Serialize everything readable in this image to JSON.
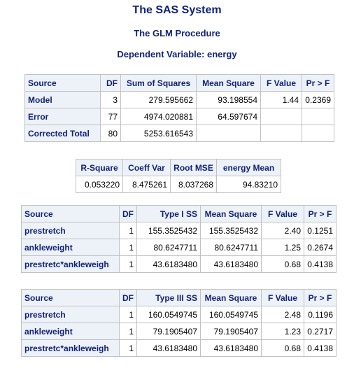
{
  "titles": {
    "system": "The SAS System",
    "procedure": "The GLM Procedure",
    "dependent": "Dependent Variable: energy"
  },
  "anova": {
    "headers": [
      "Source",
      "DF",
      "Sum of Squares",
      "Mean Square",
      "F Value",
      "Pr > F"
    ],
    "rows": [
      {
        "source": "Model",
        "df": "3",
        "ss": "279.595662",
        "ms": "93.198554",
        "f": "1.44",
        "p": "0.2369"
      },
      {
        "source": "Error",
        "df": "77",
        "ss": "4974.020881",
        "ms": "64.597674",
        "f": "",
        "p": ""
      },
      {
        "source": "Corrected Total",
        "df": "80",
        "ss": "5253.616543",
        "ms": "",
        "f": "",
        "p": ""
      }
    ]
  },
  "fit": {
    "headers": [
      "R-Square",
      "Coeff Var",
      "Root MSE",
      "energy Mean"
    ],
    "values": [
      "0.053220",
      "8.475261",
      "8.037268",
      "94.83210"
    ]
  },
  "type1": {
    "headers": [
      "Source",
      "DF",
      "Type I SS",
      "Mean Square",
      "F Value",
      "Pr > F"
    ],
    "rows": [
      {
        "source": "prestretch",
        "df": "1",
        "ss": "155.3525432",
        "ms": "155.3525432",
        "f": "2.40",
        "p": "0.1251"
      },
      {
        "source": "ankleweight",
        "df": "1",
        "ss": "80.6247711",
        "ms": "80.6247711",
        "f": "1.25",
        "p": "0.2674"
      },
      {
        "source": "prestretc*ankleweigh",
        "df": "1",
        "ss": "43.6183480",
        "ms": "43.6183480",
        "f": "0.68",
        "p": "0.4138"
      }
    ]
  },
  "type3": {
    "headers": [
      "Source",
      "DF",
      "Type III SS",
      "Mean Square",
      "F Value",
      "Pr > F"
    ],
    "rows": [
      {
        "source": "prestretch",
        "df": "1",
        "ss": "160.0549745",
        "ms": "160.0549745",
        "f": "2.48",
        "p": "0.1196"
      },
      {
        "source": "ankleweight",
        "df": "1",
        "ss": "79.1905407",
        "ms": "79.1905407",
        "f": "1.23",
        "p": "0.2717"
      },
      {
        "source": "prestretc*ankleweigh",
        "df": "1",
        "ss": "43.6183480",
        "ms": "43.6183480",
        "f": "0.68",
        "p": "0.4138"
      }
    ]
  }
}
